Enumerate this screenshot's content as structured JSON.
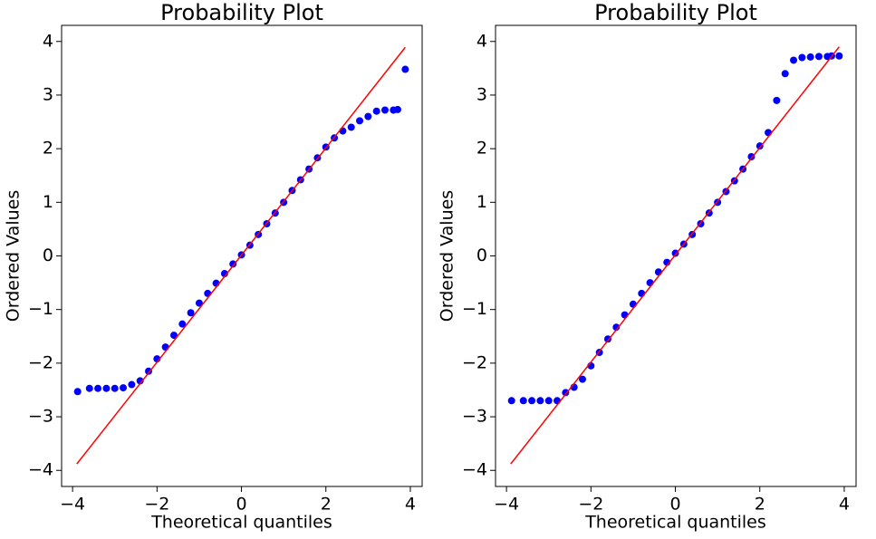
{
  "chart_data": [
    {
      "type": "scatter",
      "title": "Probability Plot",
      "xlabel": "Theoretical quantiles",
      "ylabel": "Ordered Values",
      "xlim": [
        -4.26,
        4.28
      ],
      "ylim": [
        -4.3,
        4.3
      ],
      "xticks": [
        {
          "value": -4,
          "label": "−4"
        },
        {
          "value": -2,
          "label": "−2"
        },
        0,
        2,
        4
      ],
      "yticks": [
        {
          "value": -4,
          "label": "−4"
        },
        {
          "value": -3,
          "label": "−3"
        },
        {
          "value": -2,
          "label": "−2"
        },
        {
          "value": -1,
          "label": "−1"
        },
        0,
        1,
        2,
        3,
        4
      ],
      "series": [
        {
          "type": "scatter",
          "color": "#0000ff",
          "x": [
            -3.88,
            -3.6,
            -3.4,
            -3.2,
            -3.0,
            -2.8,
            -2.6,
            -2.4,
            -2.2,
            -2.0,
            -1.8,
            -1.6,
            -1.4,
            -1.2,
            -1.0,
            -0.8,
            -0.6,
            -0.4,
            -0.2,
            0,
            0.2,
            0.4,
            0.6,
            0.8,
            1.0,
            1.2,
            1.4,
            1.6,
            1.8,
            2.0,
            2.2,
            2.4,
            2.6,
            2.8,
            3.0,
            3.2,
            3.4,
            3.6,
            3.7,
            3.88
          ],
          "values": [
            -2.53,
            -2.47,
            -2.47,
            -2.47,
            -2.47,
            -2.46,
            -2.4,
            -2.33,
            -2.15,
            -1.92,
            -1.7,
            -1.48,
            -1.27,
            -1.06,
            -0.88,
            -0.7,
            -0.51,
            -0.33,
            -0.15,
            0.02,
            0.2,
            0.4,
            0.6,
            0.8,
            1.0,
            1.22,
            1.42,
            1.62,
            1.83,
            2.03,
            2.2,
            2.33,
            2.4,
            2.52,
            2.6,
            2.7,
            2.72,
            2.72,
            2.73,
            3.48
          ]
        },
        {
          "type": "line",
          "color": "#ff0000",
          "x": [
            -3.9,
            3.88
          ],
          "values": [
            -3.88,
            3.89
          ]
        }
      ]
    },
    {
      "type": "scatter",
      "title": "Probability Plot",
      "xlabel": "Theoretical quantiles",
      "ylabel": "Ordered Values",
      "xlim": [
        -4.26,
        4.28
      ],
      "ylim": [
        -4.3,
        4.3
      ],
      "xticks": [
        {
          "value": -4,
          "label": "−4"
        },
        {
          "value": -2,
          "label": "−2"
        },
        0,
        2,
        4
      ],
      "yticks": [
        {
          "value": -4,
          "label": "−4"
        },
        {
          "value": -3,
          "label": "−3"
        },
        {
          "value": -2,
          "label": "−2"
        },
        {
          "value": -1,
          "label": "−1"
        },
        0,
        1,
        2,
        3,
        4
      ],
      "series": [
        {
          "type": "scatter",
          "color": "#0000ff",
          "x": [
            -3.88,
            -3.6,
            -3.4,
            -3.2,
            -3.0,
            -2.8,
            -2.6,
            -2.4,
            -2.2,
            -2.0,
            -1.8,
            -1.6,
            -1.4,
            -1.2,
            -1.0,
            -0.8,
            -0.6,
            -0.4,
            -0.2,
            0,
            0.2,
            0.4,
            0.6,
            0.8,
            1.0,
            1.2,
            1.4,
            1.6,
            1.8,
            2.0,
            2.2,
            2.4,
            2.6,
            2.8,
            3.0,
            3.2,
            3.4,
            3.6,
            3.7,
            3.88
          ],
          "values": [
            -2.7,
            -2.7,
            -2.7,
            -2.7,
            -2.7,
            -2.7,
            -2.55,
            -2.45,
            -2.3,
            -2.05,
            -1.8,
            -1.55,
            -1.33,
            -1.1,
            -0.9,
            -0.7,
            -0.5,
            -0.3,
            -0.12,
            0.05,
            0.22,
            0.4,
            0.6,
            0.8,
            1.0,
            1.2,
            1.4,
            1.62,
            1.85,
            2.05,
            2.3,
            2.9,
            3.4,
            3.65,
            3.7,
            3.71,
            3.72,
            3.72,
            3.73,
            3.73
          ]
        },
        {
          "type": "line",
          "color": "#ff0000",
          "x": [
            -3.9,
            3.88
          ],
          "values": [
            -3.88,
            3.9
          ]
        }
      ]
    }
  ]
}
